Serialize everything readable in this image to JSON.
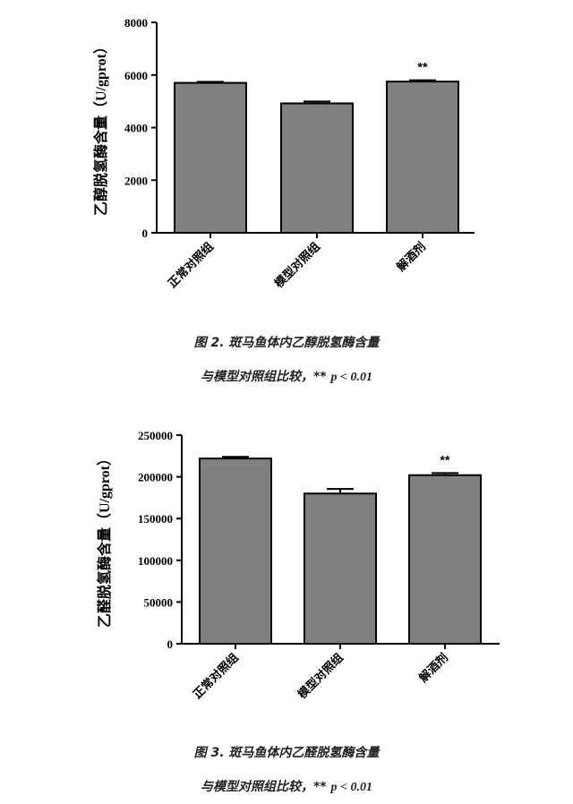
{
  "colors": {
    "bar_fill": "#808080",
    "bar_stroke": "#000000",
    "axis": "#000000"
  },
  "chart_data": [
    {
      "type": "bar",
      "ylabel": "乙醇脱氢酶含量（U/gprot）",
      "categories": [
        "正常对照组",
        "模型对照组",
        "解酒剂"
      ],
      "values": [
        5700,
        4920,
        5750
      ],
      "errors": [
        40,
        70,
        50
      ],
      "annotations": [
        "",
        "",
        "**"
      ],
      "ylim": [
        0,
        8000
      ],
      "yticks": [
        "0",
        "2000",
        "4000",
        "6000",
        "8000"
      ],
      "caption_line1": "图 2. 斑马鱼体内乙醇脱氢酶含量",
      "caption_line2_text": "与模型对照组比较，** ",
      "caption_line2_p": "p < 0.01"
    },
    {
      "type": "bar",
      "ylabel": "乙醛脱氢酶含量（U/gprot）",
      "categories": [
        "正常对照组",
        "模型对照组",
        "解酒剂"
      ],
      "values": [
        222000,
        180000,
        202000
      ],
      "errors": [
        2000,
        5500,
        2500
      ],
      "annotations": [
        "",
        "",
        "**"
      ],
      "ylim": [
        0,
        250000
      ],
      "yticks": [
        "0",
        "50000",
        "100000",
        "150000",
        "200000",
        "250000"
      ],
      "caption_line1": "图 3. 斑马鱼体内乙醛脱氢酶含量",
      "caption_line2_text": "与模型对照组比较，** ",
      "caption_line2_p": "p < 0.01"
    }
  ]
}
